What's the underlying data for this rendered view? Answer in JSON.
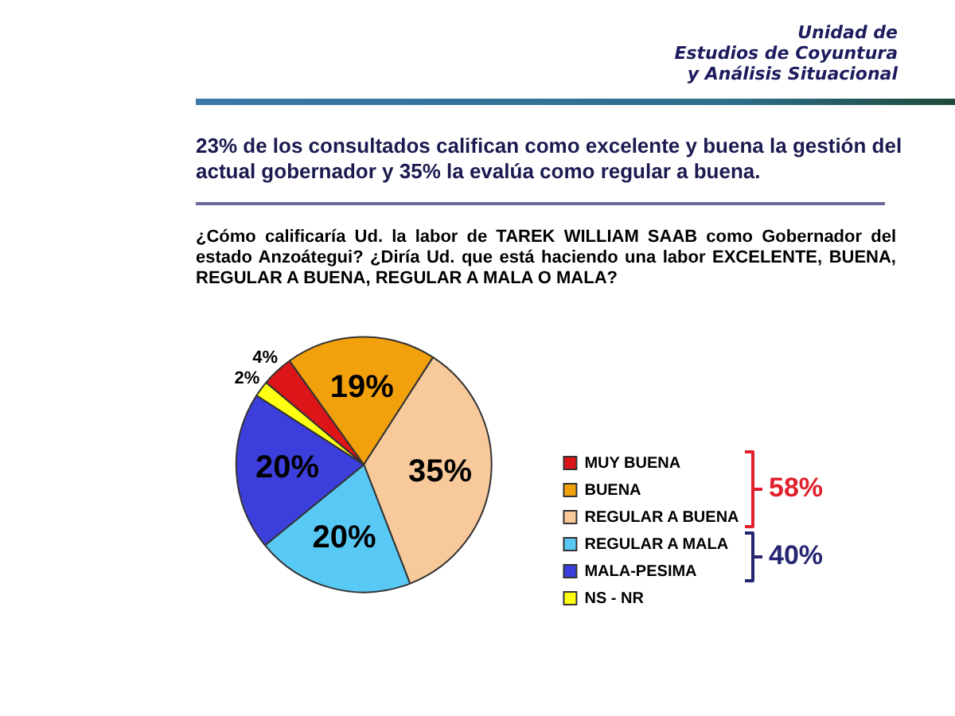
{
  "chart_data": {
    "type": "pie",
    "title": "23% de los consultados califican como excelente y buena la gestión del actual gobernador y 35% la evalúa como regular a buena.",
    "subtitle": "¿Cómo calificaría Ud. la labor de TAREK WILLIAM SAAB como Gobernador del estado Anzoátegui? ¿Diría Ud. que está haciendo una labor EXCELENTE, BUENA, REGULAR A BUENA, REGULAR A MALA O MALA?",
    "categories": [
      "MUY BUENA",
      "BUENA",
      "REGULAR A BUENA",
      "REGULAR A MALA",
      "MALA-PESIMA",
      "NS - NR"
    ],
    "values": [
      4,
      19,
      35,
      20,
      20,
      2
    ],
    "colors": [
      "#dd1418",
      "#f2a00c",
      "#f8c99a",
      "#58c8f4",
      "#3c3fdc",
      "#ffff14"
    ],
    "value_labels": [
      "4%",
      "19%",
      "35%",
      "20%",
      "20%",
      "2%"
    ],
    "legend": "right",
    "annotations": [
      "Unidad de\nEstudios de Coyuntura\ny Análisis Situacional",
      "58%",
      "40%"
    ]
  }
}
